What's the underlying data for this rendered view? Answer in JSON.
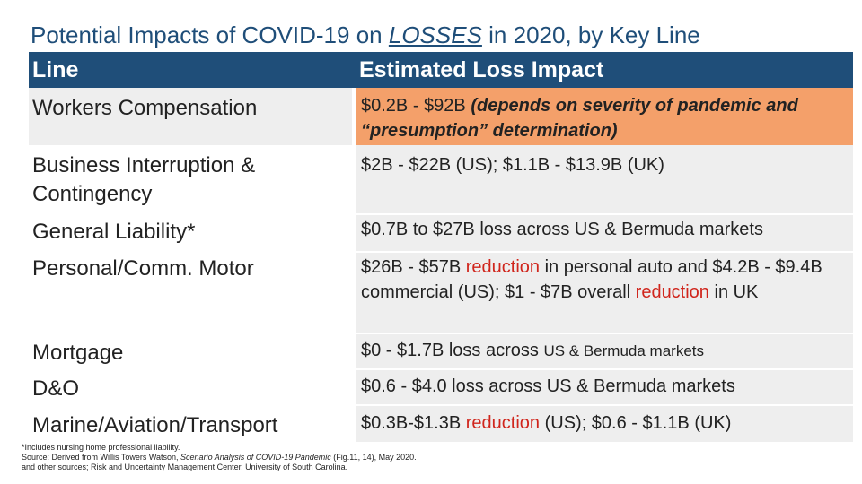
{
  "title": {
    "prefix": "Potential Impacts of COVID-19 on ",
    "emphasis": "LOSSES",
    "suffix": " in 2020, by Key Line"
  },
  "table": {
    "headers": {
      "line": "Line",
      "impact": "Estimated Loss Impact"
    },
    "rows": {
      "wc": {
        "line": "Workers Compensation",
        "impact_a": "$0.2B - $92B ",
        "impact_b": "(depends on severity of pandemic and “presumption” determination)"
      },
      "bi": {
        "line": "Business Interruption & Contingency",
        "impact": "$2B - $22B (US); $1.1B - $13.9B (UK)"
      },
      "gl": {
        "line": "General Liability*",
        "impact": "$0.7B to $27B loss across US & Bermuda markets"
      },
      "motor": {
        "line": "Personal/Comm. Motor",
        "a": "$26B - $57B ",
        "b": "reduction",
        "c": " in personal auto and $4.2B - $9.4B commercial (US); $1 - $7B overall ",
        "d": "reduction",
        "e": " in UK"
      },
      "mortgage": {
        "line": "Mortgage",
        "a": "$0 - $1.7B loss across ",
        "b": "US & Bermuda markets"
      },
      "dno": {
        "line": "D&O",
        "impact": "$0.6 - $4.0 loss across US & Bermuda markets"
      },
      "marine": {
        "line": "Marine/Aviation/Transport",
        "a": "$0.3B-$1.3B ",
        "b": "reduction",
        "c": " (US); $0.6 - $1.1B (UK)"
      }
    }
  },
  "footnote": {
    "line1": "*Includes nursing home professional liability.",
    "line2a": "Source: Derived from Willis Towers Watson, ",
    "line2b": "Scenario Analysis of COVID-19 Pandemic",
    "line2c": " (Fig.11, 14), May 2020.",
    "line3": "and other sources; Risk and Uncertainty Management Center, University of South Carolina."
  },
  "colors": {
    "header_bg": "#1f4e79",
    "title": "#1f4e79",
    "orange": "#f4a06a",
    "grey": "#eeeeee",
    "red": "#d0251c"
  }
}
